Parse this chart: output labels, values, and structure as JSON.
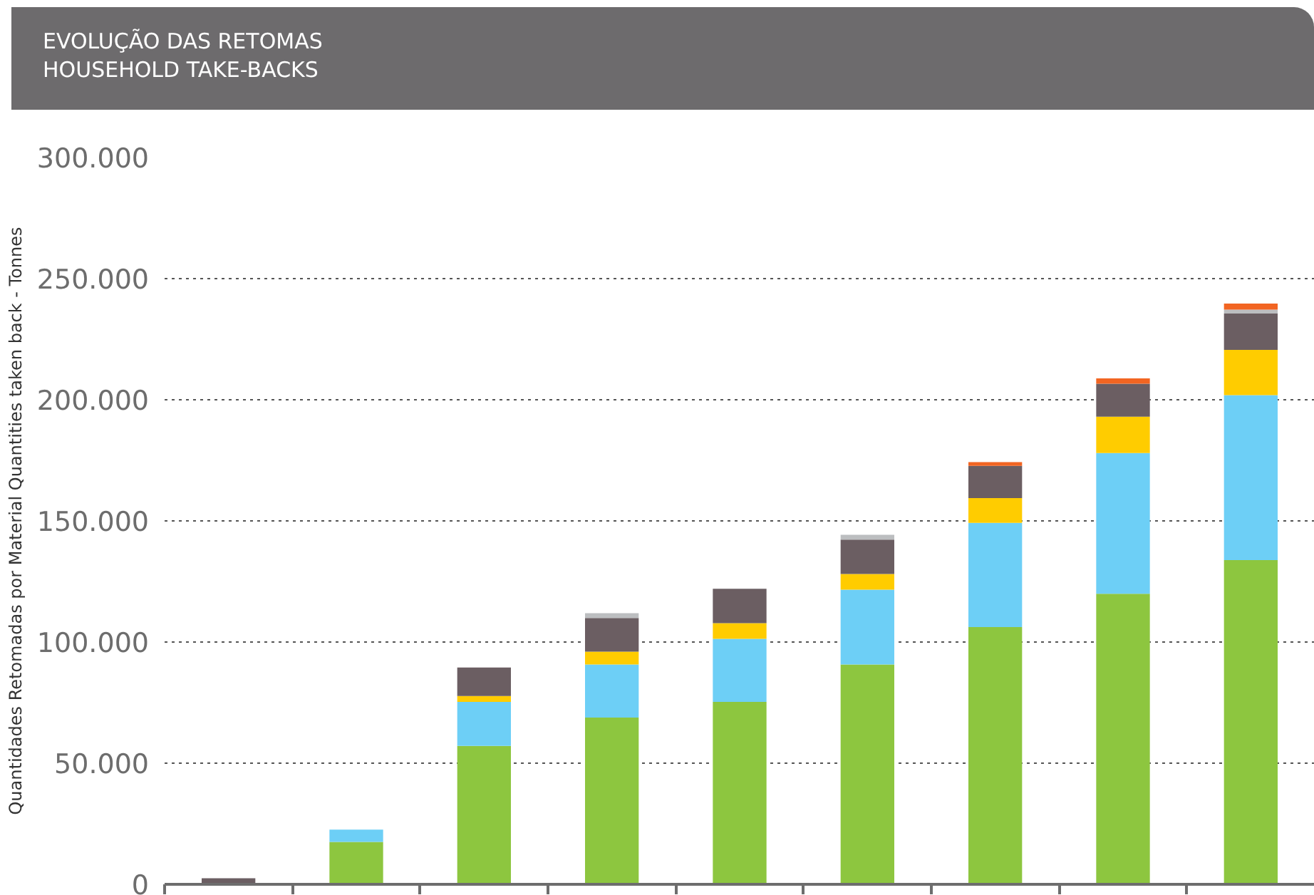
{
  "chart_data": {
    "type": "bar",
    "title": "EVOLUÇÃO DAS RETOMAS",
    "subtitle": "HOUSEHOLD TAKE-BACKS",
    "ylabel": "Quantidades Retomadas por Material Quantities taken back - Tonnes",
    "categories": [
      null,
      null,
      null,
      null,
      null,
      null,
      null,
      null,
      null
    ],
    "stacked": true,
    "series": [
      {
        "color": "#8dc63f",
        "values": [
          null,
          17500,
          57100,
          68800,
          75300,
          90700,
          106200,
          119900,
          133800
        ]
      },
      {
        "color": "#6dcff6",
        "values": [
          null,
          5100,
          18200,
          21900,
          26000,
          30900,
          43000,
          58100,
          68100
        ]
      },
      {
        "color": "#ffcc00",
        "values": [
          null,
          null,
          2400,
          5300,
          6500,
          6500,
          10200,
          15000,
          18700
        ]
      },
      {
        "color": "#6b5e62",
        "values": [
          2500,
          null,
          11800,
          13900,
          14200,
          14200,
          13300,
          13600,
          15000
        ]
      },
      {
        "color": "#bcbec0",
        "values": [
          null,
          null,
          null,
          2000,
          null,
          2000,
          null,
          null,
          1600
        ]
      },
      {
        "color": "#f26522",
        "values": [
          null,
          null,
          null,
          null,
          null,
          null,
          1600,
          2200,
          2500
        ]
      }
    ],
    "ylim": [
      0,
      300000
    ],
    "yticks": [
      0,
      {
        "value": 50000,
        "label": "50.000"
      },
      {
        "value": 100000,
        "label": "100.000"
      },
      {
        "value": 150000,
        "label": "150.000"
      },
      {
        "value": 200000,
        "label": "200.000"
      },
      {
        "value": 250000,
        "label": "250.000"
      },
      {
        "value": 300000,
        "label": "300.000"
      }
    ],
    "grid": "y"
  }
}
